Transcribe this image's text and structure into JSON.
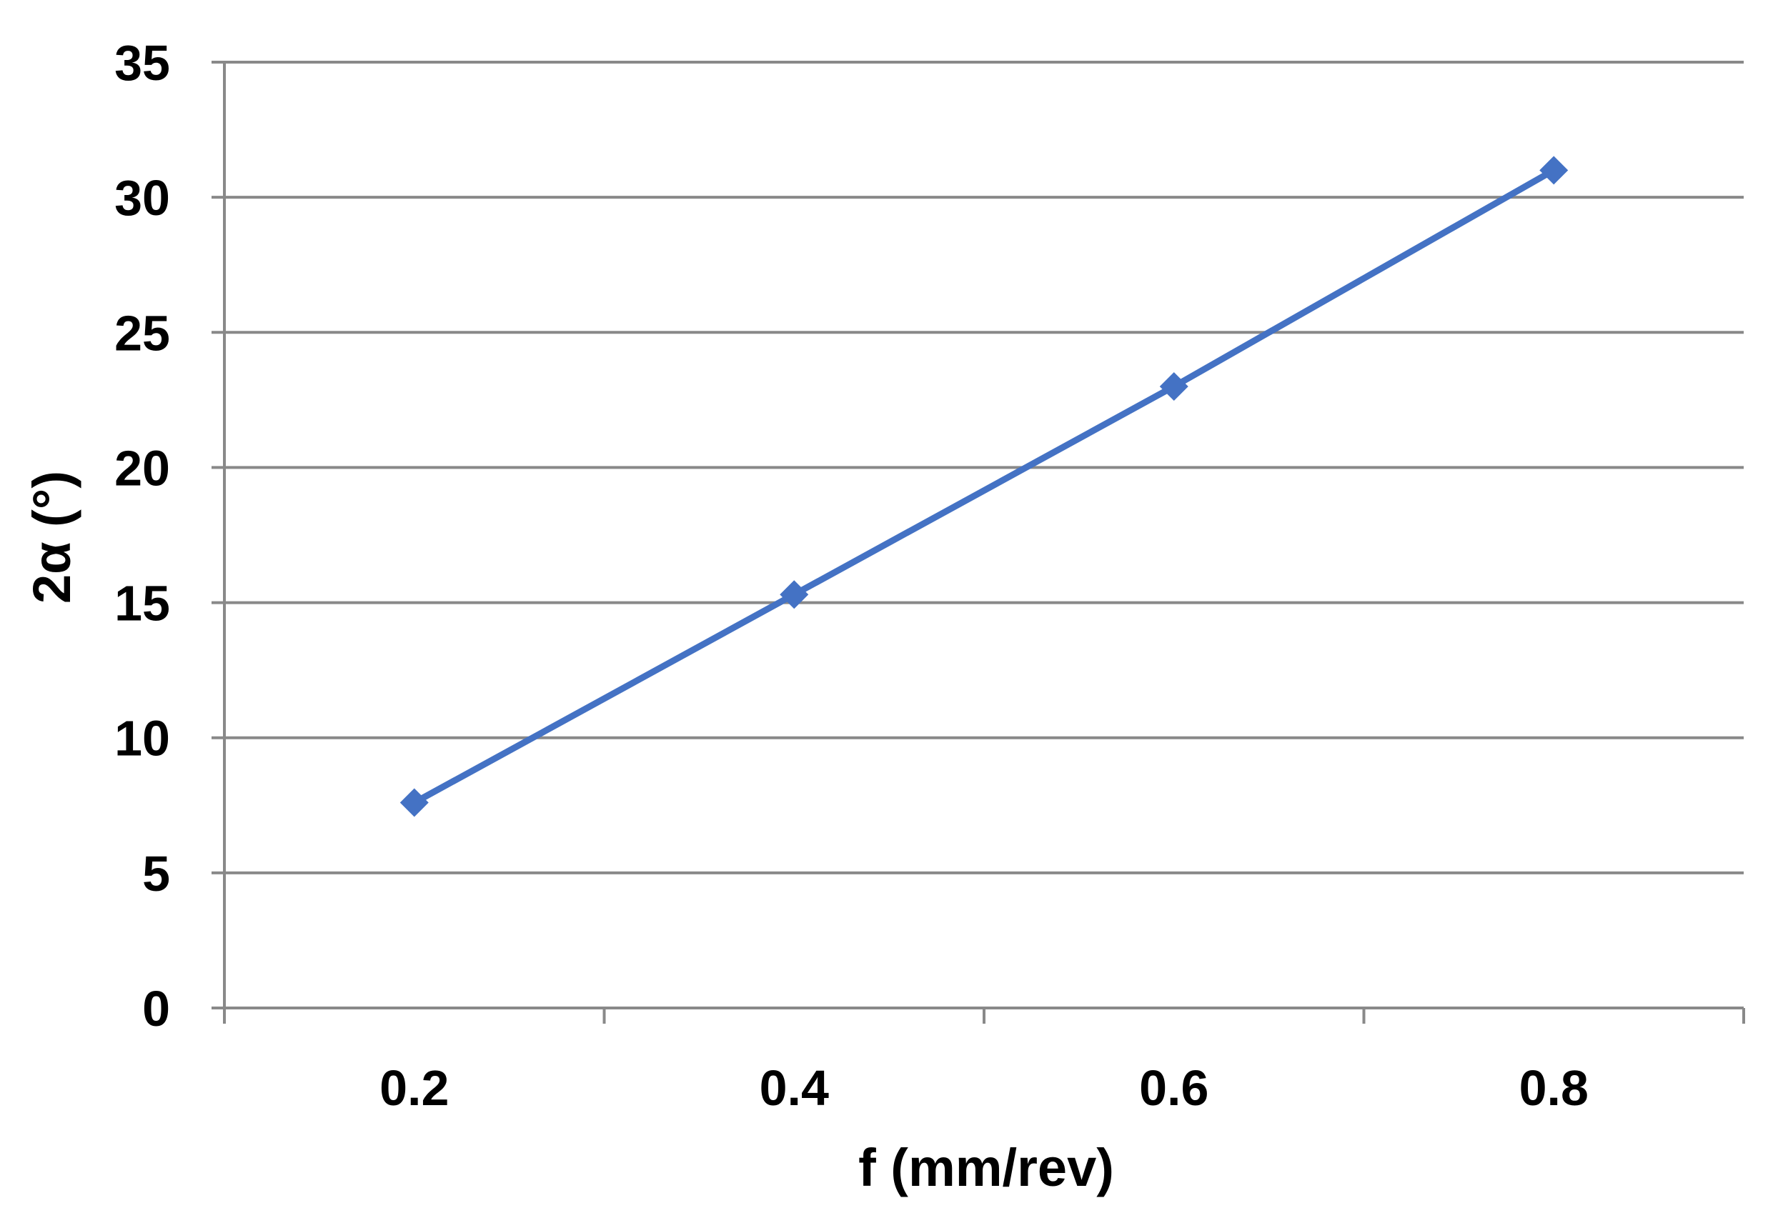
{
  "chart_data": {
    "type": "line",
    "title": "",
    "xlabel": "f (mm/rev)",
    "ylabel": "2α (°)",
    "categories": [
      "0.2",
      "0.4",
      "0.6",
      "0.8"
    ],
    "series": [
      {
        "values": [
          7.6,
          15.3,
          23.0,
          31.0
        ],
        "color": "#4472C4",
        "marker": "diamond"
      }
    ],
    "ylim": [
      0,
      35
    ],
    "yticks": [
      "0",
      "5",
      "10",
      "15",
      "20",
      "25",
      "30",
      "35"
    ],
    "grid": "horizontal",
    "legend": "none"
  }
}
